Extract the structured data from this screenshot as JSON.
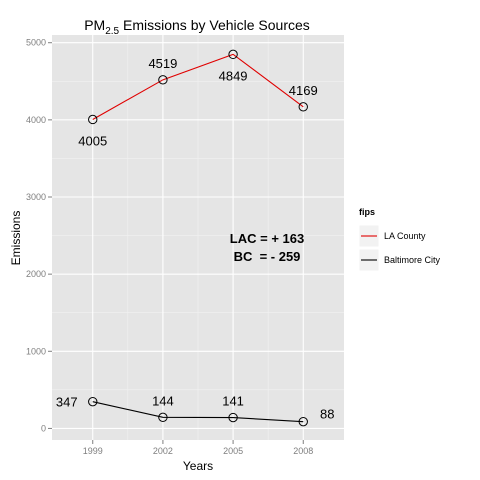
{
  "chart_data": {
    "type": "line",
    "title_main": "PM",
    "title_sub": "2.5",
    "title_rest": " Emissions by Vehicle Sources",
    "xlabel": "Years",
    "ylabel": "Emissions",
    "x": [
      1999,
      2002,
      2005,
      2008
    ],
    "x_tick_labels": [
      "1999",
      "2002",
      "2005",
      "2008"
    ],
    "y_ticks": [
      0,
      1000,
      2000,
      3000,
      4000,
      5000
    ],
    "y_tick_labels": [
      "0",
      "1000",
      "2000",
      "3000",
      "4000",
      "5000"
    ],
    "ylim": [
      -150,
      5100
    ],
    "grid": true,
    "series": [
      {
        "name": "LA County",
        "color": "#e00000",
        "values": [
          4005,
          4519,
          4849,
          4169
        ],
        "labels": [
          "4005",
          "4519",
          "4849",
          "4169"
        ],
        "label_position": [
          "below",
          "above",
          "below",
          "above"
        ]
      },
      {
        "name": "Baltimore City",
        "color": "#000000",
        "values": [
          347,
          144,
          141,
          88
        ],
        "labels": [
          "347",
          "144",
          "141",
          "88"
        ],
        "label_position": [
          "left",
          "above",
          "above",
          "right"
        ]
      }
    ],
    "annotations": [
      "LAC = + 163",
      "BC  = - 259"
    ],
    "legend": {
      "title": "fips",
      "placement": "right",
      "entries": [
        "LA County",
        "Baltimore City"
      ]
    }
  }
}
